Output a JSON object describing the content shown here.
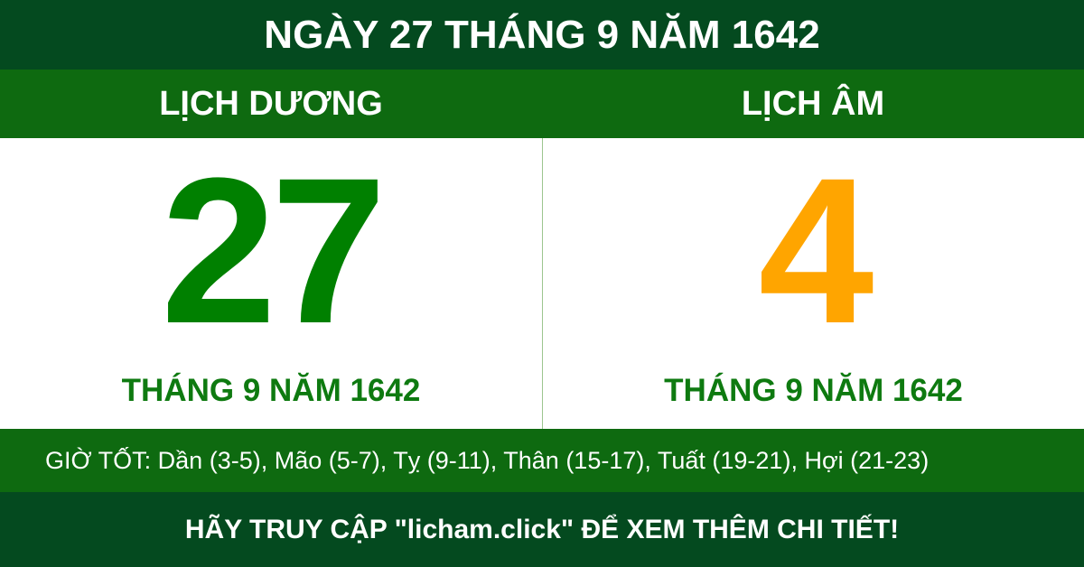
{
  "title": "NGÀY 27 THÁNG 9 NĂM 1642",
  "solar": {
    "heading": "LỊCH DƯƠNG",
    "day": "27",
    "month_year": "THÁNG 9 NĂM 1642",
    "color": "#008000"
  },
  "lunar": {
    "heading": "LỊCH ÂM",
    "day": "4",
    "month_year": "THÁNG 9 NĂM 1642",
    "color": "#ffa500"
  },
  "good_hours": "GIỜ TỐT: Dần (3-5), Mão (5-7), Tỵ (9-11), Thân (15-17), Tuất (19-21), Hợi (21-23)",
  "footer": "HÃY TRUY CẬP \"licham.click\" ĐỂ XEM THÊM CHI TIẾT!"
}
